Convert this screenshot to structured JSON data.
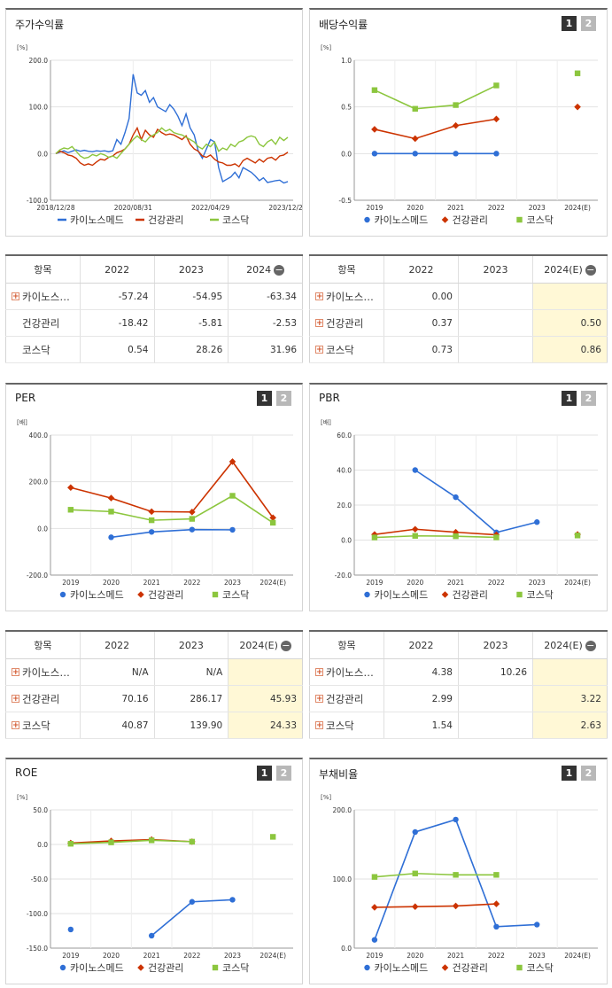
{
  "colors": {
    "company": "#2f6fd6",
    "industry": "#cc3300",
    "market": "#8cc63e"
  },
  "legend": [
    "카이노스메드",
    "건강관리",
    "코스닥"
  ],
  "pager": [
    "1",
    "2"
  ],
  "tables": {
    "stock_return": {
      "headers": [
        "항목",
        "2022",
        "2023",
        "2024"
      ],
      "rows": [
        {
          "name": "카이노스…",
          "plus": "+",
          "v": [
            "-57.24",
            "-54.95",
            "-63.34"
          ]
        },
        {
          "name": "건강관리",
          "plus": "",
          "v": [
            "-18.42",
            "-5.81",
            "-2.53"
          ]
        },
        {
          "name": "코스닥",
          "plus": "",
          "v": [
            "0.54",
            "28.26",
            "31.96"
          ]
        }
      ]
    },
    "dividend": {
      "headers": [
        "항목",
        "2022",
        "2023",
        "2024(E)"
      ],
      "rows": [
        {
          "name": "카이노스…",
          "plus": "+",
          "v": [
            "0.00",
            "",
            ""
          ]
        },
        {
          "name": "건강관리",
          "plus": "+",
          "v": [
            "0.37",
            "",
            "0.50"
          ]
        },
        {
          "name": "코스닥",
          "plus": "+",
          "v": [
            "0.73",
            "",
            "0.86"
          ]
        }
      ]
    },
    "per": {
      "headers": [
        "항목",
        "2022",
        "2023",
        "2024(E)"
      ],
      "rows": [
        {
          "name": "카이노스…",
          "plus": "+",
          "v": [
            "N/A",
            "N/A",
            ""
          ]
        },
        {
          "name": "건강관리",
          "plus": "+",
          "v": [
            "70.16",
            "286.17",
            "45.93"
          ]
        },
        {
          "name": "코스닥",
          "plus": "+",
          "v": [
            "40.87",
            "139.90",
            "24.33"
          ]
        }
      ]
    },
    "pbr": {
      "headers": [
        "항목",
        "2022",
        "2023",
        "2024(E)"
      ],
      "rows": [
        {
          "name": "카이노스…",
          "plus": "+",
          "v": [
            "4.38",
            "10.26",
            ""
          ]
        },
        {
          "name": "건강관리",
          "plus": "+",
          "v": [
            "2.99",
            "",
            "3.22"
          ]
        },
        {
          "name": "코스닥",
          "plus": "+",
          "v": [
            "1.54",
            "",
            "2.63"
          ]
        }
      ]
    }
  },
  "chart_data": [
    {
      "id": "stock_return",
      "title": "주가수익률",
      "type": "line",
      "unit": "[%]",
      "ylim": [
        -100,
        200
      ],
      "yticks": [
        "200.0",
        "100.0",
        "0.0",
        "-100.0"
      ],
      "xticks": [
        "2018/12/28",
        "2020/08/31",
        "2022/04/29",
        "2023/12/28"
      ],
      "series": [
        {
          "name": "카이노스메드",
          "values": [
            0,
            3,
            6,
            2,
            5,
            8,
            5,
            7,
            5,
            4,
            6,
            5,
            6,
            4,
            6,
            30,
            20,
            45,
            75,
            170,
            130,
            125,
            135,
            110,
            120,
            100,
            95,
            90,
            105,
            95,
            80,
            60,
            85,
            55,
            40,
            5,
            -10,
            10,
            30,
            25,
            -30,
            -60,
            -55,
            -50,
            -40,
            -52,
            -30,
            -35,
            -40,
            -48,
            -58,
            -52,
            -62,
            -60,
            -58,
            -57,
            -63,
            -60
          ]
        },
        {
          "name": "건강관리",
          "values": [
            0,
            5,
            2,
            -3,
            -5,
            -10,
            -20,
            -25,
            -22,
            -25,
            -18,
            -12,
            -14,
            -8,
            -5,
            2,
            5,
            10,
            20,
            40,
            55,
            30,
            50,
            40,
            35,
            52,
            45,
            40,
            42,
            40,
            35,
            30,
            38,
            20,
            10,
            5,
            -5,
            -8,
            -3,
            -12,
            -18,
            -20,
            -25,
            -25,
            -22,
            -28,
            -15,
            -10,
            -15,
            -20,
            -12,
            -18,
            -10,
            -8,
            -14,
            -5,
            -3,
            3
          ]
        },
        {
          "name": "코스닥",
          "values": [
            0,
            8,
            12,
            10,
            15,
            5,
            -5,
            -10,
            -8,
            -2,
            -5,
            0,
            -3,
            -8,
            -5,
            -10,
            0,
            10,
            20,
            30,
            38,
            30,
            25,
            35,
            40,
            45,
            55,
            48,
            52,
            45,
            42,
            40,
            35,
            30,
            25,
            15,
            10,
            20,
            15,
            25,
            5,
            12,
            8,
            20,
            15,
            25,
            28,
            35,
            38,
            35,
            20,
            15,
            25,
            30,
            20,
            35,
            28,
            35
          ]
        }
      ]
    },
    {
      "id": "dividend",
      "title": "배당수익률",
      "type": "line",
      "unit": "[%]",
      "ylim": [
        -0.5,
        1.0
      ],
      "yticks": [
        "1.0",
        "0.5",
        "0.0",
        "-0.5"
      ],
      "categories": [
        "2019",
        "2020",
        "2021",
        "2022",
        "2023",
        "2024(E)"
      ],
      "series": [
        {
          "name": "카이노스메드",
          "values": [
            0.0,
            0.0,
            0.0,
            0.0,
            null,
            null
          ]
        },
        {
          "name": "건강관리",
          "values": [
            0.26,
            0.16,
            0.3,
            0.37,
            null,
            0.5
          ]
        },
        {
          "name": "코스닥",
          "values": [
            0.68,
            0.48,
            0.52,
            0.73,
            null,
            0.86
          ]
        }
      ]
    },
    {
      "id": "per",
      "title": "PER",
      "type": "line",
      "unit": "[배]",
      "ylim": [
        -200,
        400
      ],
      "yticks": [
        "400.0",
        "200.0",
        "0.0",
        "-200.0"
      ],
      "categories": [
        "2019",
        "2020",
        "2021",
        "2022",
        "2023",
        "2024(E)"
      ],
      "series": [
        {
          "name": "카이노스메드",
          "values": [
            null,
            -38,
            -15,
            -5,
            -6,
            null
          ]
        },
        {
          "name": "건강관리",
          "values": [
            175,
            130,
            72,
            70.16,
            286.17,
            45.93
          ]
        },
        {
          "name": "코스닥",
          "values": [
            80,
            72,
            35,
            40.87,
            139.9,
            24.33
          ]
        }
      ]
    },
    {
      "id": "pbr",
      "title": "PBR",
      "type": "line",
      "unit": "[배]",
      "ylim": [
        -20,
        60
      ],
      "yticks": [
        "60.0",
        "40.0",
        "20.0",
        "0.0",
        "-20.0"
      ],
      "categories": [
        "2019",
        "2020",
        "2021",
        "2022",
        "2023",
        "2024(E)"
      ],
      "series": [
        {
          "name": "카이노스메드",
          "values": [
            null,
            40,
            24.5,
            4.38,
            10.26,
            null
          ]
        },
        {
          "name": "건강관리",
          "values": [
            3.2,
            6.2,
            4.5,
            2.99,
            null,
            3.22
          ]
        },
        {
          "name": "코스닥",
          "values": [
            1.5,
            2.4,
            2.2,
            1.54,
            null,
            2.63
          ]
        }
      ]
    },
    {
      "id": "roe",
      "title": "ROE",
      "type": "line",
      "unit": "[%]",
      "ylim": [
        -150,
        50
      ],
      "yticks": [
        "50.0",
        "0.0",
        "-50.0",
        "-100.0",
        "-150.0"
      ],
      "categories": [
        "2019",
        "2020",
        "2021",
        "2022",
        "2023",
        "2024(E)"
      ],
      "series": [
        {
          "name": "카이노스메드",
          "values": [
            -123,
            null,
            -132,
            -83,
            -80,
            null
          ]
        },
        {
          "name": "건강관리",
          "values": [
            2,
            5,
            7,
            4,
            null,
            null
          ]
        },
        {
          "name": "코스닥",
          "values": [
            1,
            3,
            6,
            4,
            null,
            11
          ]
        }
      ]
    },
    {
      "id": "debt",
      "title": "부채비율",
      "type": "line",
      "unit": "[%]",
      "ylim": [
        0,
        200
      ],
      "yticks": [
        "200.0",
        "100.0",
        "0.0"
      ],
      "categories": [
        "2019",
        "2020",
        "2021",
        "2022",
        "2023",
        "2024(E)"
      ],
      "series": [
        {
          "name": "카이노스메드",
          "values": [
            12,
            168,
            186,
            31,
            34,
            null
          ]
        },
        {
          "name": "건강관리",
          "values": [
            59,
            60,
            61,
            64,
            null,
            null
          ]
        },
        {
          "name": "코스닥",
          "values": [
            103,
            108,
            106,
            106,
            null,
            null
          ]
        }
      ]
    }
  ]
}
